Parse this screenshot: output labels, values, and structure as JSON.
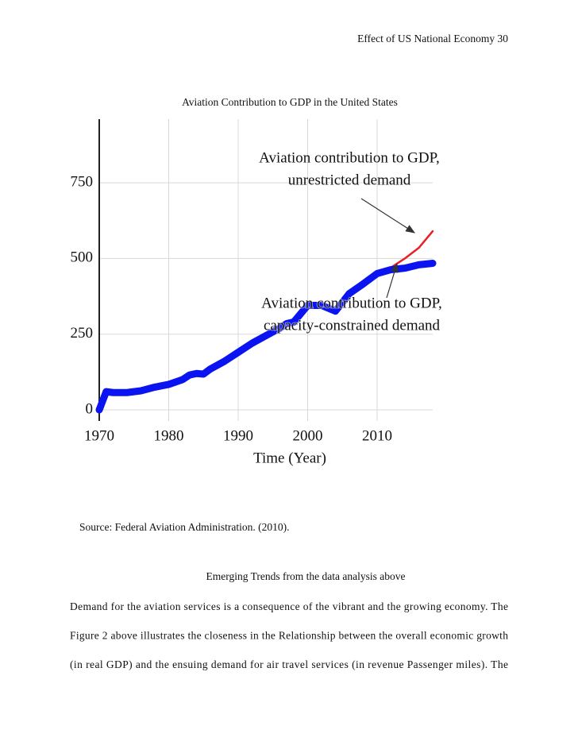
{
  "header": {
    "text": "Effect of US National Economy 30"
  },
  "chart_data": {
    "type": "line",
    "title": "Aviation Contribution to GDP in the United States",
    "x_label": "Time (Year)",
    "x": [
      1970,
      1971,
      1972,
      1974,
      1976,
      1978,
      1980,
      1982,
      1983,
      1984,
      1985,
      1986,
      1988,
      1990,
      1992,
      1994,
      1996,
      1997,
      1998,
      2000,
      2002,
      2004,
      2006,
      2008,
      2010,
      2012,
      2014,
      2016,
      2018
    ],
    "series": [
      {
        "color": "#0a14f0",
        "values": [
          0,
          60,
          57,
          57,
          63,
          75,
          84,
          100,
          115,
          120,
          118,
          135,
          160,
          190,
          220,
          245,
          270,
          285,
          290,
          345,
          345,
          326,
          384,
          416,
          450,
          463,
          468,
          479,
          484
        ]
      },
      {
        "color": "#e8202a",
        "values": [
          null,
          null,
          null,
          null,
          null,
          null,
          null,
          null,
          null,
          null,
          null,
          null,
          null,
          null,
          null,
          null,
          null,
          null,
          null,
          null,
          null,
          null,
          null,
          null,
          450,
          470,
          500,
          535,
          590
        ]
      }
    ],
    "annotations": [
      {
        "lines": [
          "Aviation contribution to GDP,",
          "unrestricted demand"
        ]
      },
      {
        "lines": [
          "Aviation contribution to GDP,",
          "capacity-constrained demand"
        ]
      }
    ],
    "xlim": [
      1970,
      2018
    ],
    "ylim": [
      0,
      960
    ],
    "xticks": [
      1970,
      1980,
      1990,
      2000,
      2010
    ],
    "yticks": [
      0,
      250,
      500,
      750
    ],
    "grid": true
  },
  "source": "Source: Federal Aviation Administration. (2010).",
  "section": {
    "heading": "Emerging Trends from the data analysis above",
    "lines": [
      "Demand for the aviation services is a consequence of the vibrant and the growing economy. The",
      "Figure 2 above illustrates the closeness in the Relationship between the overall economic growth",
      "(in real GDP) and the ensuing demand for air travel services (in revenue Passenger miles). The"
    ]
  }
}
